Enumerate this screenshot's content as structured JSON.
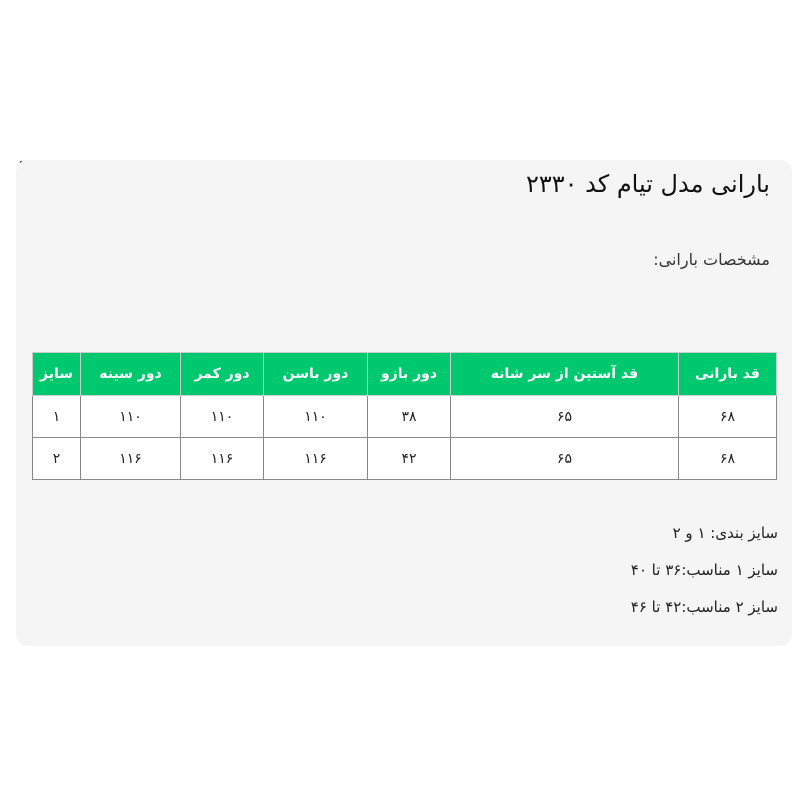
{
  "title": "بارانی مدل تیام کد ۲۳۳۰",
  "subtitle": "مشخصات بارانی:",
  "close_icon": "close-icon",
  "accent_color": "#00c86e",
  "table": {
    "headers": [
      "قد بارانی",
      "قد آستین از سر شانه",
      "دور بازو",
      "دور باسن",
      "دور کمر",
      "دور سینه",
      "سایز"
    ],
    "rows": [
      [
        "۶۸",
        "۶۵",
        "۳۸",
        "۱۱۰",
        "۱۱۰",
        "۱۱۰",
        "۱"
      ],
      [
        "۶۸",
        "۶۵",
        "۴۲",
        "۱۱۶",
        "۱۱۶",
        "۱۱۶",
        "۲"
      ]
    ]
  },
  "notes": [
    "سایز بندی: ۱ و ۲",
    "سایز ۱ مناسب:۳۶ تا ۴۰",
    "سایز ۲ مناسب:۴۲ تا ۴۶"
  ]
}
